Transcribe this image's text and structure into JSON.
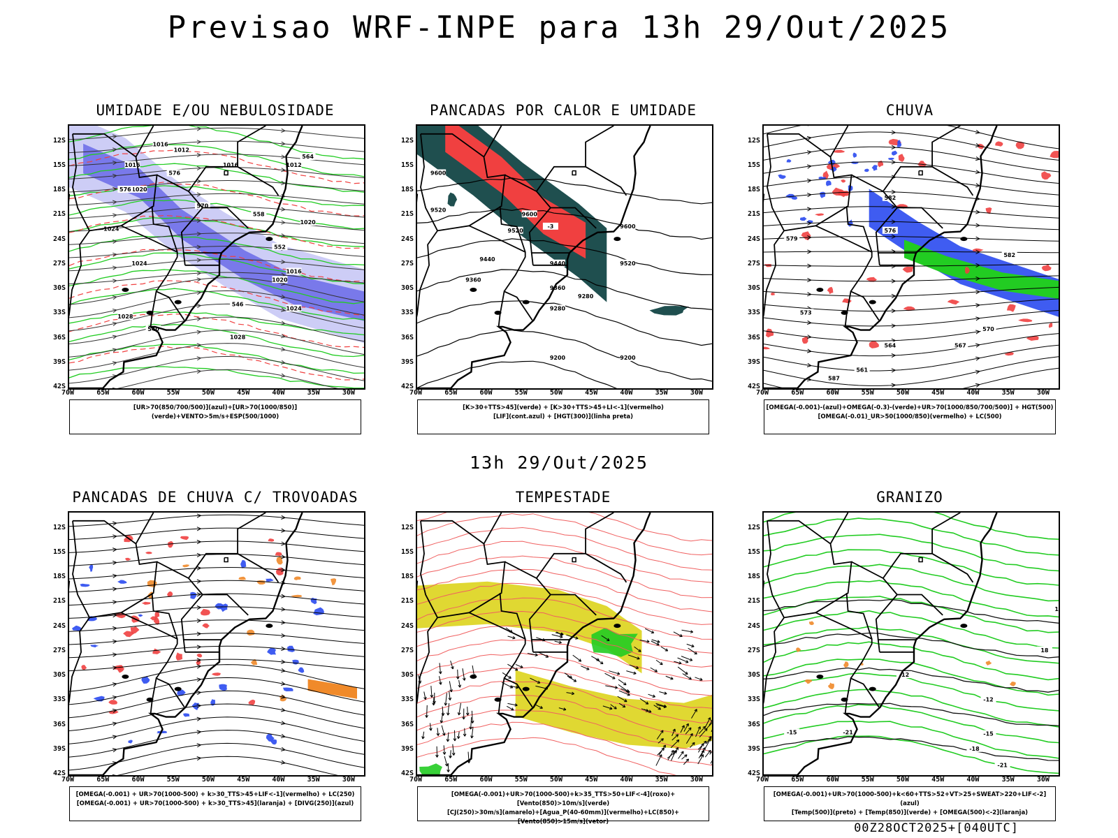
{
  "title": "Previsao WRF-INPE  para 13h 29/Out/2025",
  "mid_title": "13h 29/Out/2025",
  "footer": "00Z28OCT2025+[040UTC]",
  "chart_data": {
    "type": "map-panels",
    "lat_ticks": [
      "12S",
      "15S",
      "18S",
      "21S",
      "24S",
      "27S",
      "30S",
      "33S",
      "36S",
      "39S",
      "42S"
    ],
    "lon_ticks": [
      "70W",
      "65W",
      "60W",
      "55W",
      "50W",
      "45W",
      "40W",
      "35W",
      "30W"
    ],
    "lat_range": [
      -42,
      -10
    ],
    "lon_range": [
      -70,
      -28
    ],
    "panels": [
      {
        "title": "UMIDADE E/OU NEBULOSIDADE",
        "legend": [
          "[UR>70(850/700/500)](azul)+[UR>70(1000/850)](verde)+VENTO>5m/s+ESP(500/1000)"
        ],
        "contour_labels": [
          "1016",
          "1012",
          "1012",
          "1016",
          "1016",
          "1020",
          "1024",
          "1020",
          "1024",
          "1024",
          "1028",
          "1028",
          "1020",
          "1016",
          "576",
          "570",
          "564",
          "558",
          "552",
          "546",
          "540",
          "576"
        ]
      },
      {
        "title": "PANCADAS POR CALOR E UMIDADE",
        "legend": [
          "[K>30+TTS>45](verde) + [K>30+TTS>45+LI<-1](vermelho)",
          "[LIF](cont.azul) + [HGT(300)](linha preta)"
        ],
        "contour_labels": [
          "9600",
          "9520",
          "9440",
          "9360",
          "9280",
          "9200",
          "9200",
          "9600",
          "9520",
          "9440",
          "9360",
          "9280",
          "9600",
          "9520",
          "-3"
        ]
      },
      {
        "title": "CHUVA",
        "legend": [
          "[OMEGA(-0.001)-(azul)+OMEGA(-0.3)-(verde)+UR>70(1000/850/700/500)] + HGT(500)",
          "[OMEGA(-0.01)_UR>50(1000/850)(vermelho) + LC(500)"
        ],
        "contour_labels": [
          "582",
          "579",
          "576",
          "573",
          "570",
          "567",
          "564",
          "561",
          "587",
          "582"
        ]
      },
      {
        "title": "PANCADAS DE CHUVA C/ TROVOADAS",
        "legend": [
          "[OMEGA(-0.001) + UR>70(1000-500) + k>30_TTS>45+LIF<-1](vermelho) + LC(250)",
          "[OMEGA(-0.001) + UR>70(1000-500) + k>30_TTS>45](laranja) + [DIVG(250)](azul)"
        ],
        "contour_labels": []
      },
      {
        "title": "TEMPESTADE",
        "legend": [
          "[OMEGA(-0.001)+UR>70(1000-500)+k>35_TTS>50+LIF<-4](roxo)+[Vento(850)>10m/s](verde)",
          "[CJ(250)>30m/s](amarelo)+[Agua_P(40-60mm)](vermelho)+LC(850)+[Vento(850)>15m/s](vetor)"
        ],
        "contour_labels": []
      },
      {
        "title": "GRANIZO",
        "legend": [
          "[OMEGA(-0.001)+UR>70(1000-500)+k<60+TTS>52+VT>25+SWEAT>220+LIF<-2](azul)",
          "[Temp(500)](preto) + [Temp(850)](verde) + [OMEGA(500)<-2](laranja)"
        ],
        "contour_labels": [
          "-12",
          "-12",
          "-15",
          "-15",
          "-18",
          "-21",
          "-21",
          "15",
          "18"
        ]
      }
    ]
  },
  "colors": {
    "coast": "#000000",
    "humid_blue": "#6a6ae8",
    "humid_light": "#c8c8f5",
    "green": "#22cc22",
    "red": "#f04040",
    "darkteal": "#1f4f4f",
    "blue": "#2a4af0",
    "orange": "#f08a2a",
    "yellow": "#e0d832",
    "streamline": "#000000",
    "salmon": "#f06060"
  }
}
